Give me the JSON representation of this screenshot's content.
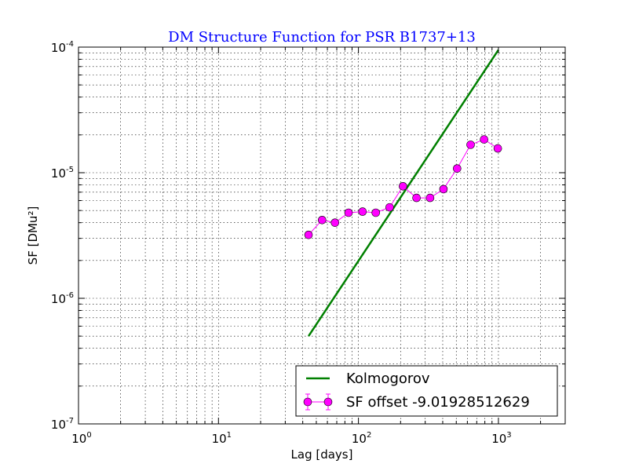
{
  "chart_data": {
    "type": "line",
    "title": "DM Structure Function for PSR B1737+13",
    "xlabel": "Lag [days]",
    "ylabel": "SF [DMu²]",
    "x_scale": "log",
    "y_scale": "log",
    "xlim": [
      1,
      3000
    ],
    "ylim": [
      1e-07,
      0.0001
    ],
    "grid": true,
    "legend_position": "lower-right",
    "x_ticks": [
      {
        "base": "10",
        "exp": "0"
      },
      {
        "base": "10",
        "exp": "1"
      },
      {
        "base": "10",
        "exp": "2"
      },
      {
        "base": "10",
        "exp": "3"
      }
    ],
    "y_ticks": [
      {
        "base": "10",
        "exp": "-7"
      },
      {
        "base": "10",
        "exp": "-6"
      },
      {
        "base": "10",
        "exp": "-5"
      },
      {
        "base": "10",
        "exp": "-4"
      }
    ],
    "series": [
      {
        "name": "Kolmogorov",
        "color": "#008000",
        "style": "line",
        "x": [
          44,
          1000
        ],
        "y": [
          5e-07,
          9.5e-05
        ]
      },
      {
        "name": "SF offset -9.01928512629",
        "color": "#ff00ff",
        "style": "line-marker-errorbar",
        "x": [
          44,
          55,
          68,
          85,
          107,
          133,
          167,
          208,
          260,
          325,
          405,
          507,
          633,
          790,
          990
        ],
        "y": [
          3.2e-06,
          4.2e-06,
          4e-06,
          4.8e-06,
          4.9e-06,
          4.8e-06,
          5.3e-06,
          7.8e-06,
          6.3e-06,
          6.3e-06,
          7.4e-06,
          1.08e-05,
          1.67e-05,
          1.84e-05,
          1.56e-05
        ]
      }
    ]
  }
}
